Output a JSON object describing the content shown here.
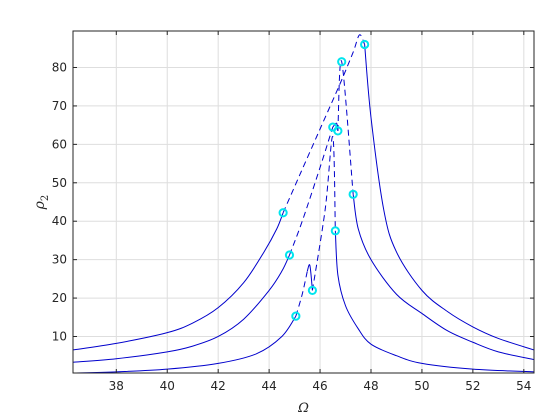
{
  "chart_data": {
    "type": "line",
    "title": "",
    "xlabel": "Ω",
    "ylabel": "ρ",
    "ylabel_subscript": "2",
    "xlim": [
      36.3,
      54.4
    ],
    "ylim": [
      0.5,
      89.5
    ],
    "xticks": [
      38,
      40,
      42,
      44,
      46,
      48,
      50,
      52,
      54
    ],
    "yticks": [
      10,
      20,
      30,
      40,
      50,
      60,
      70,
      80
    ],
    "grid": true,
    "line_color": "#0000cc",
    "marker_color": "#00e5ee",
    "series": [
      {
        "solid": [
          [
            [
              36.3,
              6.5
            ],
            [
              38,
              8.2
            ],
            [
              40,
              11
            ],
            [
              41,
              13.5
            ],
            [
              42,
              17.5
            ],
            [
              43,
              24
            ],
            [
              43.8,
              32
            ],
            [
              44.3,
              38
            ],
            [
              44.55,
              42.2
            ]
          ],
          [
            [
              47.75,
              86
            ],
            [
              48.0,
              67
            ],
            [
              48.5,
              43
            ],
            [
              49,
              32
            ],
            [
              50,
              22
            ],
            [
              51,
              16.5
            ],
            [
              52,
              12.5
            ],
            [
              53,
              9.5
            ],
            [
              54.4,
              6.5
            ]
          ]
        ],
        "dashed": [
          [
            [
              44.55,
              42.2
            ],
            [
              45.2,
              52
            ],
            [
              46,
              64
            ],
            [
              46.8,
              76
            ],
            [
              47.3,
              84
            ],
            [
              47.55,
              88.5
            ],
            [
              47.75,
              86
            ]
          ]
        ],
        "markers": [
          [
            44.55,
            42.2
          ],
          [
            47.75,
            86
          ]
        ]
      },
      {
        "solid": [
          [
            [
              36.3,
              3.3
            ],
            [
              38,
              4.2
            ],
            [
              40,
              6
            ],
            [
              41,
              7.5
            ],
            [
              42,
              10
            ],
            [
              43,
              14.5
            ],
            [
              44,
              22
            ],
            [
              44.5,
              27
            ],
            [
              44.8,
              31.2
            ]
          ],
          [
            [
              46.5,
              64.5
            ],
            [
              46.65,
              65.5
            ],
            [
              46.7,
              63.5
            ]
          ],
          [
            [
              47.3,
              47
            ],
            [
              47.5,
              38
            ],
            [
              48,
              30
            ],
            [
              49,
              21
            ],
            [
              50,
              16
            ],
            [
              51,
              11.5
            ],
            [
              52,
              8.5
            ],
            [
              53,
              6
            ],
            [
              54.4,
              4
            ]
          ]
        ],
        "dashed": [
          [
            [
              44.8,
              31.2
            ],
            [
              45.3,
              40
            ],
            [
              46,
              54
            ],
            [
              46.5,
              64.5
            ]
          ],
          [
            [
              46.7,
              63.5
            ],
            [
              46.85,
              81.5
            ],
            [
              47.3,
              47
            ]
          ]
        ],
        "markers": [
          [
            44.8,
            31.2
          ],
          [
            46.5,
            64.5
          ],
          [
            46.7,
            63.5
          ],
          [
            46.85,
            81.5
          ],
          [
            47.3,
            47
          ]
        ]
      },
      {
        "solid": [
          [
            [
              36.3,
              0.5
            ],
            [
              38,
              0.8
            ],
            [
              40,
              1.5
            ],
            [
              42,
              3
            ],
            [
              43.5,
              5.5
            ],
            [
              44.5,
              10
            ],
            [
              45.05,
              15.3
            ]
          ],
          [
            [
              45.5,
              27
            ],
            [
              45.6,
              28.5
            ],
            [
              45.7,
              22
            ]
          ],
          [
            [
              46.6,
              37.5
            ],
            [
              46.7,
              26
            ],
            [
              47,
              18
            ],
            [
              47.5,
              12
            ],
            [
              48,
              8
            ],
            [
              49,
              5
            ],
            [
              50,
              3
            ],
            [
              52,
              1.5
            ],
            [
              54.4,
              0.8
            ]
          ]
        ],
        "dashed": [
          [
            [
              45.05,
              15.3
            ],
            [
              45.3,
              21
            ],
            [
              45.5,
              27
            ]
          ],
          [
            [
              45.7,
              22
            ],
            [
              46.2,
              43
            ],
            [
              46.5,
              62
            ],
            [
              46.6,
              37.5
            ]
          ]
        ],
        "markers": [
          [
            45.05,
            15.3
          ],
          [
            45.7,
            22
          ],
          [
            46.6,
            37.5
          ]
        ]
      }
    ]
  }
}
